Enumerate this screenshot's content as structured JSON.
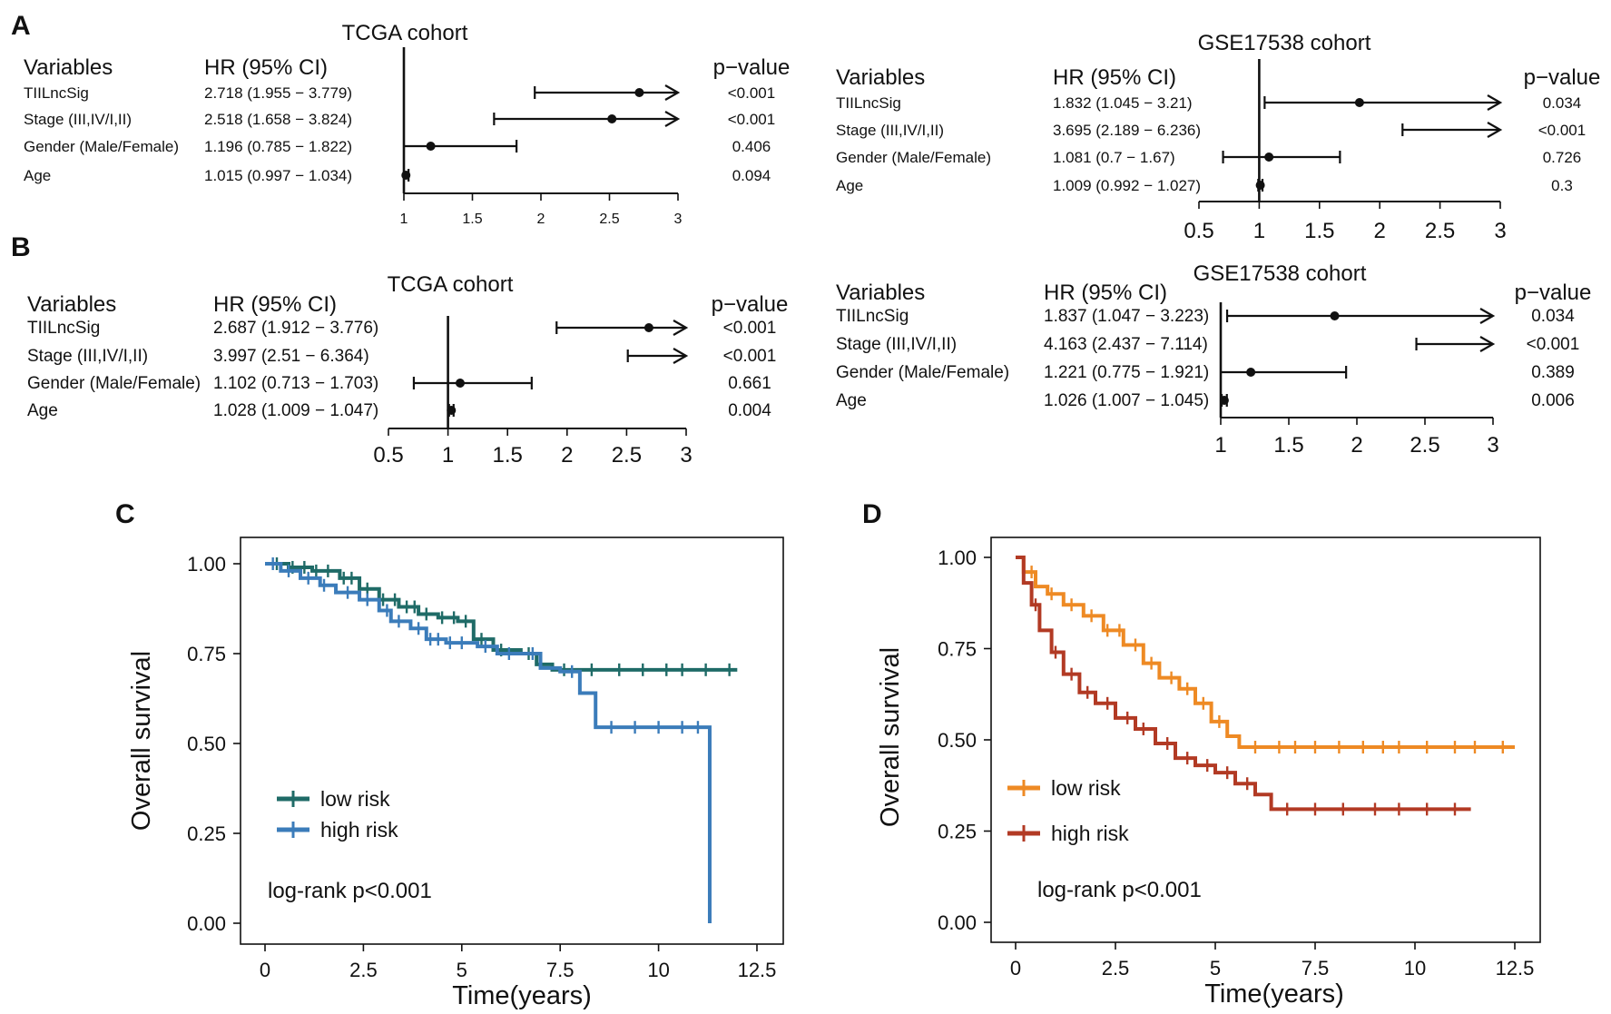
{
  "panel_labels": {
    "A": "A",
    "B": "B",
    "C": "C",
    "D": "D"
  },
  "chart_data": [
    {
      "id": "A_tcga",
      "type": "forest",
      "panel": "A",
      "title": "TCGA cohort",
      "headers": {
        "variables": "Variables",
        "hr": "HR (95% CI)",
        "p": "p−value"
      },
      "xlim": [
        1,
        3
      ],
      "ticks": [
        "1",
        "1.5",
        "2",
        "2.5",
        "3"
      ],
      "tick_values": [
        1,
        1.5,
        2,
        2.5,
        3
      ],
      "reference": 1,
      "rows": [
        {
          "label": "TIILncSig",
          "hr_text": "2.718 (1.955 − 3.779)",
          "p": "<0.001",
          "hr": 2.718,
          "lo": 1.955,
          "hi": 3.779
        },
        {
          "label": "Stage (III,IV/I,II)",
          "hr_text": "2.518 (1.658 − 3.824)",
          "p": "<0.001",
          "hr": 2.518,
          "lo": 1.658,
          "hi": 3.824
        },
        {
          "label": "Gender (Male/Female)",
          "hr_text": "1.196 (0.785 − 1.822)",
          "p": "0.406",
          "hr": 1.196,
          "lo": 0.785,
          "hi": 1.822
        },
        {
          "label": "Age",
          "hr_text": "1.015 (0.997 − 1.034)",
          "p": "0.094",
          "hr": 1.015,
          "lo": 0.997,
          "hi": 1.034
        }
      ]
    },
    {
      "id": "A_gse",
      "type": "forest",
      "panel": "A",
      "title": "GSE17538 cohort",
      "headers": {
        "variables": "Variables",
        "hr": "HR (95% CI)",
        "p": "p−value"
      },
      "xlim": [
        0.5,
        3
      ],
      "ticks": [
        "0.5",
        "1",
        "1.5",
        "2",
        "2.5",
        "3"
      ],
      "tick_values": [
        0.5,
        1,
        1.5,
        2,
        2.5,
        3
      ],
      "reference": 1,
      "rows": [
        {
          "label": "TIILncSig",
          "hr_text": "1.832 (1.045 − 3.21)",
          "p": "0.034",
          "hr": 1.832,
          "lo": 1.045,
          "hi": 3.21
        },
        {
          "label": "Stage (III,IV/I,II)",
          "hr_text": "3.695 (2.189 − 6.236)",
          "p": "<0.001",
          "hr": 3.695,
          "lo": 2.189,
          "hi": 6.236
        },
        {
          "label": "Gender (Male/Female)",
          "hr_text": "1.081 (0.7 − 1.67)",
          "p": "0.726",
          "hr": 1.081,
          "lo": 0.7,
          "hi": 1.67
        },
        {
          "label": "Age",
          "hr_text": "1.009 (0.992 − 1.027)",
          "p": "0.3",
          "hr": 1.009,
          "lo": 0.992,
          "hi": 1.027
        }
      ]
    },
    {
      "id": "B_tcga",
      "type": "forest",
      "panel": "B",
      "title": "TCGA cohort",
      "headers": {
        "variables": "Variables",
        "hr": "HR (95% CI)",
        "p": "p−value"
      },
      "xlim": [
        0.5,
        3
      ],
      "ticks": [
        "0.5",
        "1",
        "1.5",
        "2",
        "2.5",
        "3"
      ],
      "tick_values": [
        0.5,
        1,
        1.5,
        2,
        2.5,
        3
      ],
      "reference": 1,
      "rows": [
        {
          "label": "TIILncSig",
          "hr_text": "2.687 (1.912 − 3.776)",
          "p": "<0.001",
          "hr": 2.687,
          "lo": 1.912,
          "hi": 3.776
        },
        {
          "label": "Stage (III,IV/I,II)",
          "hr_text": "3.997 (2.51 − 6.364)",
          "p": "<0.001",
          "hr": 3.997,
          "lo": 2.51,
          "hi": 6.364
        },
        {
          "label": "Gender (Male/Female)",
          "hr_text": "1.102 (0.713 − 1.703)",
          "p": "0.661",
          "hr": 1.102,
          "lo": 0.713,
          "hi": 1.703
        },
        {
          "label": "Age",
          "hr_text": "1.028 (1.009 − 1.047)",
          "p": "0.004",
          "hr": 1.028,
          "lo": 1.009,
          "hi": 1.047
        }
      ]
    },
    {
      "id": "B_gse",
      "type": "forest",
      "panel": "B",
      "title": "GSE17538 cohort",
      "headers": {
        "variables": "Variables",
        "hr": "HR (95% CI)",
        "p": "p−value"
      },
      "xlim": [
        1,
        3
      ],
      "ticks": [
        "1",
        "1.5",
        "2",
        "2.5",
        "3"
      ],
      "tick_values": [
        1,
        1.5,
        2,
        2.5,
        3
      ],
      "reference": 1,
      "rows": [
        {
          "label": "TIILncSig",
          "hr_text": "1.837 (1.047 − 3.223)",
          "p": "0.034",
          "hr": 1.837,
          "lo": 1.047,
          "hi": 3.223
        },
        {
          "label": "Stage (III,IV/I,II)",
          "hr_text": "4.163 (2.437 − 7.114)",
          "p": "<0.001",
          "hr": 4.163,
          "lo": 2.437,
          "hi": 7.114
        },
        {
          "label": "Gender (Male/Female)",
          "hr_text": "1.221 (0.775 − 1.921)",
          "p": "0.389",
          "hr": 1.221,
          "lo": 0.775,
          "hi": 1.921
        },
        {
          "label": "Age",
          "hr_text": "1.026 (1.007 − 1.045)",
          "p": "0.006",
          "hr": 1.026,
          "lo": 1.007,
          "hi": 1.045
        }
      ]
    },
    {
      "id": "C_km",
      "type": "line",
      "panel": "C",
      "xlabel": "Time(years)",
      "ylabel": "Overall survival",
      "xlim": [
        0,
        12.5
      ],
      "ylim": [
        0,
        1
      ],
      "xticks": [
        "0",
        "2.5",
        "5",
        "7.5",
        "10",
        "12.5"
      ],
      "xtick_values": [
        0,
        2.5,
        5,
        7.5,
        10,
        12.5
      ],
      "yticks": [
        "0.00",
        "0.25",
        "0.50",
        "0.75",
        "1.00"
      ],
      "ytick_values": [
        0,
        0.25,
        0.5,
        0.75,
        1
      ],
      "legend_position": "bottom-left",
      "annotation": "log-rank p<0.001",
      "series": [
        {
          "name": "low risk",
          "color": "#1f6b67",
          "x": [
            0,
            0.6,
            1.2,
            1.9,
            2.4,
            2.9,
            3.4,
            3.9,
            4.4,
            4.9,
            5.3,
            5.8,
            6.5,
            6.9,
            7.3,
            8.0,
            10.0,
            12.0
          ],
          "y": [
            1.0,
            0.99,
            0.98,
            0.96,
            0.93,
            0.9,
            0.88,
            0.86,
            0.85,
            0.84,
            0.79,
            0.76,
            0.75,
            0.72,
            0.705,
            0.705,
            0.705,
            0.705
          ],
          "censor_x": [
            0.3,
            0.7,
            1.0,
            1.3,
            1.6,
            2.0,
            2.2,
            2.6,
            3.0,
            3.3,
            3.6,
            3.8,
            4.1,
            4.5,
            4.8,
            5.1,
            5.5,
            6.0,
            6.7,
            7.6,
            8.3,
            9.0,
            9.6,
            10.2,
            10.6,
            11.2,
            11.8
          ]
        },
        {
          "name": "high risk",
          "color": "#3b7cba",
          "x": [
            0,
            0.4,
            0.9,
            1.4,
            1.8,
            2.4,
            2.9,
            3.2,
            3.7,
            4.1,
            4.6,
            5.4,
            5.9,
            6.6,
            7.0,
            7.5,
            8.0,
            8.4,
            11.3,
            11.3
          ],
          "y": [
            1.0,
            0.98,
            0.96,
            0.94,
            0.92,
            0.9,
            0.87,
            0.84,
            0.82,
            0.79,
            0.78,
            0.77,
            0.75,
            0.75,
            0.71,
            0.7,
            0.64,
            0.545,
            0.545,
            0.0
          ],
          "censor_x": [
            0.2,
            0.6,
            1.1,
            1.5,
            2.1,
            2.6,
            3.1,
            3.4,
            3.9,
            4.2,
            4.4,
            4.7,
            5.0,
            5.6,
            6.2,
            6.8,
            7.8,
            8.8,
            9.4,
            10.0,
            10.6,
            11.0
          ]
        }
      ]
    },
    {
      "id": "D_km",
      "type": "line",
      "panel": "D",
      "xlabel": "Time(years)",
      "ylabel": "Overall survival",
      "xlim": [
        0,
        12.5
      ],
      "ylim": [
        0,
        1
      ],
      "xticks": [
        "0",
        "2.5",
        "5",
        "7.5",
        "10",
        "12.5"
      ],
      "xtick_values": [
        0,
        2.5,
        5,
        7.5,
        10,
        12.5
      ],
      "yticks": [
        "0.00",
        "0.25",
        "0.50",
        "0.75",
        "1.00"
      ],
      "ytick_values": [
        0,
        0.25,
        0.5,
        0.75,
        1
      ],
      "legend_position": "bottom-left",
      "annotation": "log-rank p<0.001",
      "series": [
        {
          "name": "low risk",
          "color": "#ee8a24",
          "x": [
            0,
            0.2,
            0.5,
            0.8,
            1.2,
            1.7,
            2.2,
            2.7,
            3.2,
            3.6,
            4.1,
            4.5,
            4.9,
            5.3,
            5.6,
            12.5
          ],
          "y": [
            1.0,
            0.96,
            0.92,
            0.9,
            0.87,
            0.84,
            0.8,
            0.76,
            0.71,
            0.67,
            0.64,
            0.6,
            0.55,
            0.51,
            0.48,
            0.48
          ],
          "censor_x": [
            0.4,
            0.9,
            1.4,
            1.9,
            2.3,
            2.6,
            3.0,
            3.4,
            3.9,
            4.3,
            4.7,
            5.1,
            6.0,
            6.6,
            7.0,
            7.5,
            8.1,
            8.7,
            9.2,
            9.6,
            10.3,
            11.0,
            11.5,
            12.2
          ]
        },
        {
          "name": "high risk",
          "color": "#b23a24",
          "x": [
            0,
            0.2,
            0.4,
            0.6,
            0.9,
            1.2,
            1.6,
            2.0,
            2.5,
            3.0,
            3.5,
            4.0,
            4.5,
            5.0,
            5.5,
            6.0,
            6.4,
            11.4
          ],
          "y": [
            1.0,
            0.93,
            0.87,
            0.8,
            0.74,
            0.68,
            0.63,
            0.6,
            0.56,
            0.53,
            0.49,
            0.45,
            0.43,
            0.41,
            0.38,
            0.35,
            0.31,
            0.31
          ],
          "censor_x": [
            0.5,
            1.0,
            1.4,
            1.8,
            2.3,
            2.8,
            3.2,
            3.8,
            4.3,
            4.8,
            5.3,
            5.8,
            6.8,
            7.5,
            8.2,
            9.0,
            9.6,
            10.3,
            11.0
          ]
        }
      ]
    }
  ]
}
